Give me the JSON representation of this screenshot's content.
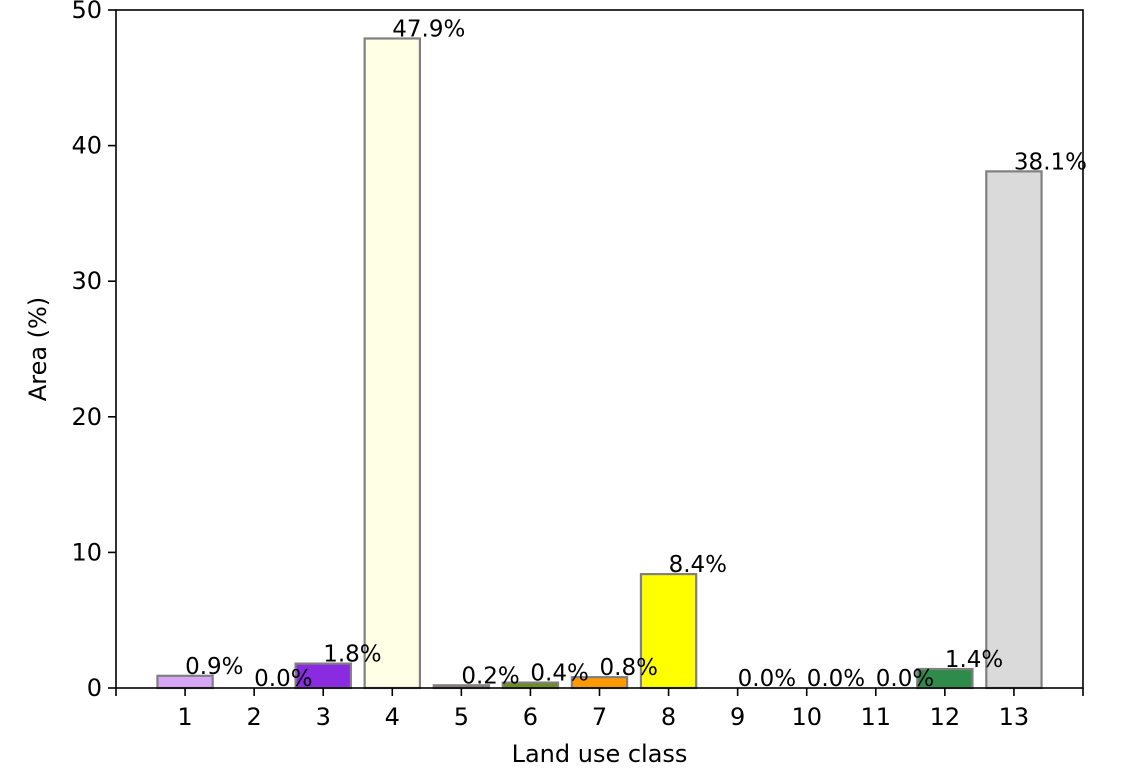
{
  "chart_data": {
    "type": "bar",
    "title": "",
    "xlabel": "Land use class",
    "ylabel": "Area (%)",
    "ylim": [
      0,
      50
    ],
    "yticks": [
      0,
      10,
      20,
      30,
      40,
      50
    ],
    "categories": [
      "1",
      "2",
      "3",
      "4",
      "5",
      "6",
      "7",
      "8",
      "9",
      "10",
      "11",
      "12",
      "13"
    ],
    "values": [
      0.9,
      0.0,
      1.8,
      47.9,
      0.2,
      0.4,
      0.8,
      8.4,
      0.0,
      0.0,
      0.0,
      1.4,
      38.1
    ],
    "labels": [
      "0.9%",
      "0.0%",
      "1.8%",
      "47.9%",
      "0.2%",
      "0.4%",
      "0.8%",
      "8.4%",
      "0.0%",
      "0.0%",
      "0.0%",
      "1.4%",
      "38.1%"
    ],
    "colors": [
      "#d4a6f5",
      "#c9a27a",
      "#8a2be2",
      "#ffffe6",
      "#8b7d6b",
      "#6b8e23",
      "#ff9900",
      "#ffff00",
      "#4a6fa5",
      "#5f9ea0",
      "#2e8b57",
      "#2e8b4a",
      "#dadada"
    ],
    "edge_color": "#808080",
    "grid": false,
    "legend": "none"
  }
}
